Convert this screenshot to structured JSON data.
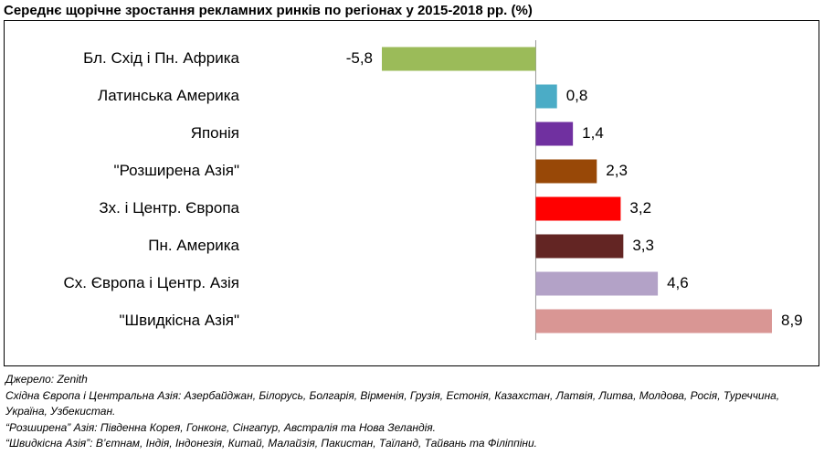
{
  "chart_data": {
    "type": "bar",
    "orientation": "horizontal",
    "title": "Середнє щорічне зростання рекламних ринків по регіонах у 2015-2018 рр. (%)",
    "categories": [
      "Бл. Схід і Пн. Африка",
      "Латинська Америка",
      "Японія",
      "\"Розширена Азія\"",
      "Зх. і Центр. Європа",
      "Пн. Америка",
      "Сх. Європа і Центр. Азія",
      "\"Швидкісна Азія\""
    ],
    "values": [
      -5.8,
      0.8,
      1.4,
      2.3,
      3.2,
      3.3,
      4.6,
      8.9
    ],
    "value_labels": [
      "-5,8",
      "0,8",
      "1,4",
      "2,3",
      "3,2",
      "3,3",
      "4,6",
      "8,9"
    ],
    "colors": [
      "#9bbb59",
      "#4bacc6",
      "#7030a0",
      "#984807",
      "#ff0000",
      "#632523",
      "#b3a2c7",
      "#d99694"
    ],
    "notes": [
      "Джерело: Zenith",
      "Східна Європа і Центральна Азія: Азербайджан, Білорусь, Болгарія, Вірменія, Грузія, Естонія, Казахстан, Латвія, Литва, Молдова, Росія, Туреччина, Україна, Узбекистан.",
      "“Розширена” Азія: Південна Корея, Гонконг, Сінгапур, Австралія та Нова Зеландія.",
      "“Швидкісна Азія”: В’єтнам, Індія, Індонезія, Китай, Малайзія, Пакистан, Таїланд, Тайвань та Філіппіни."
    ]
  }
}
